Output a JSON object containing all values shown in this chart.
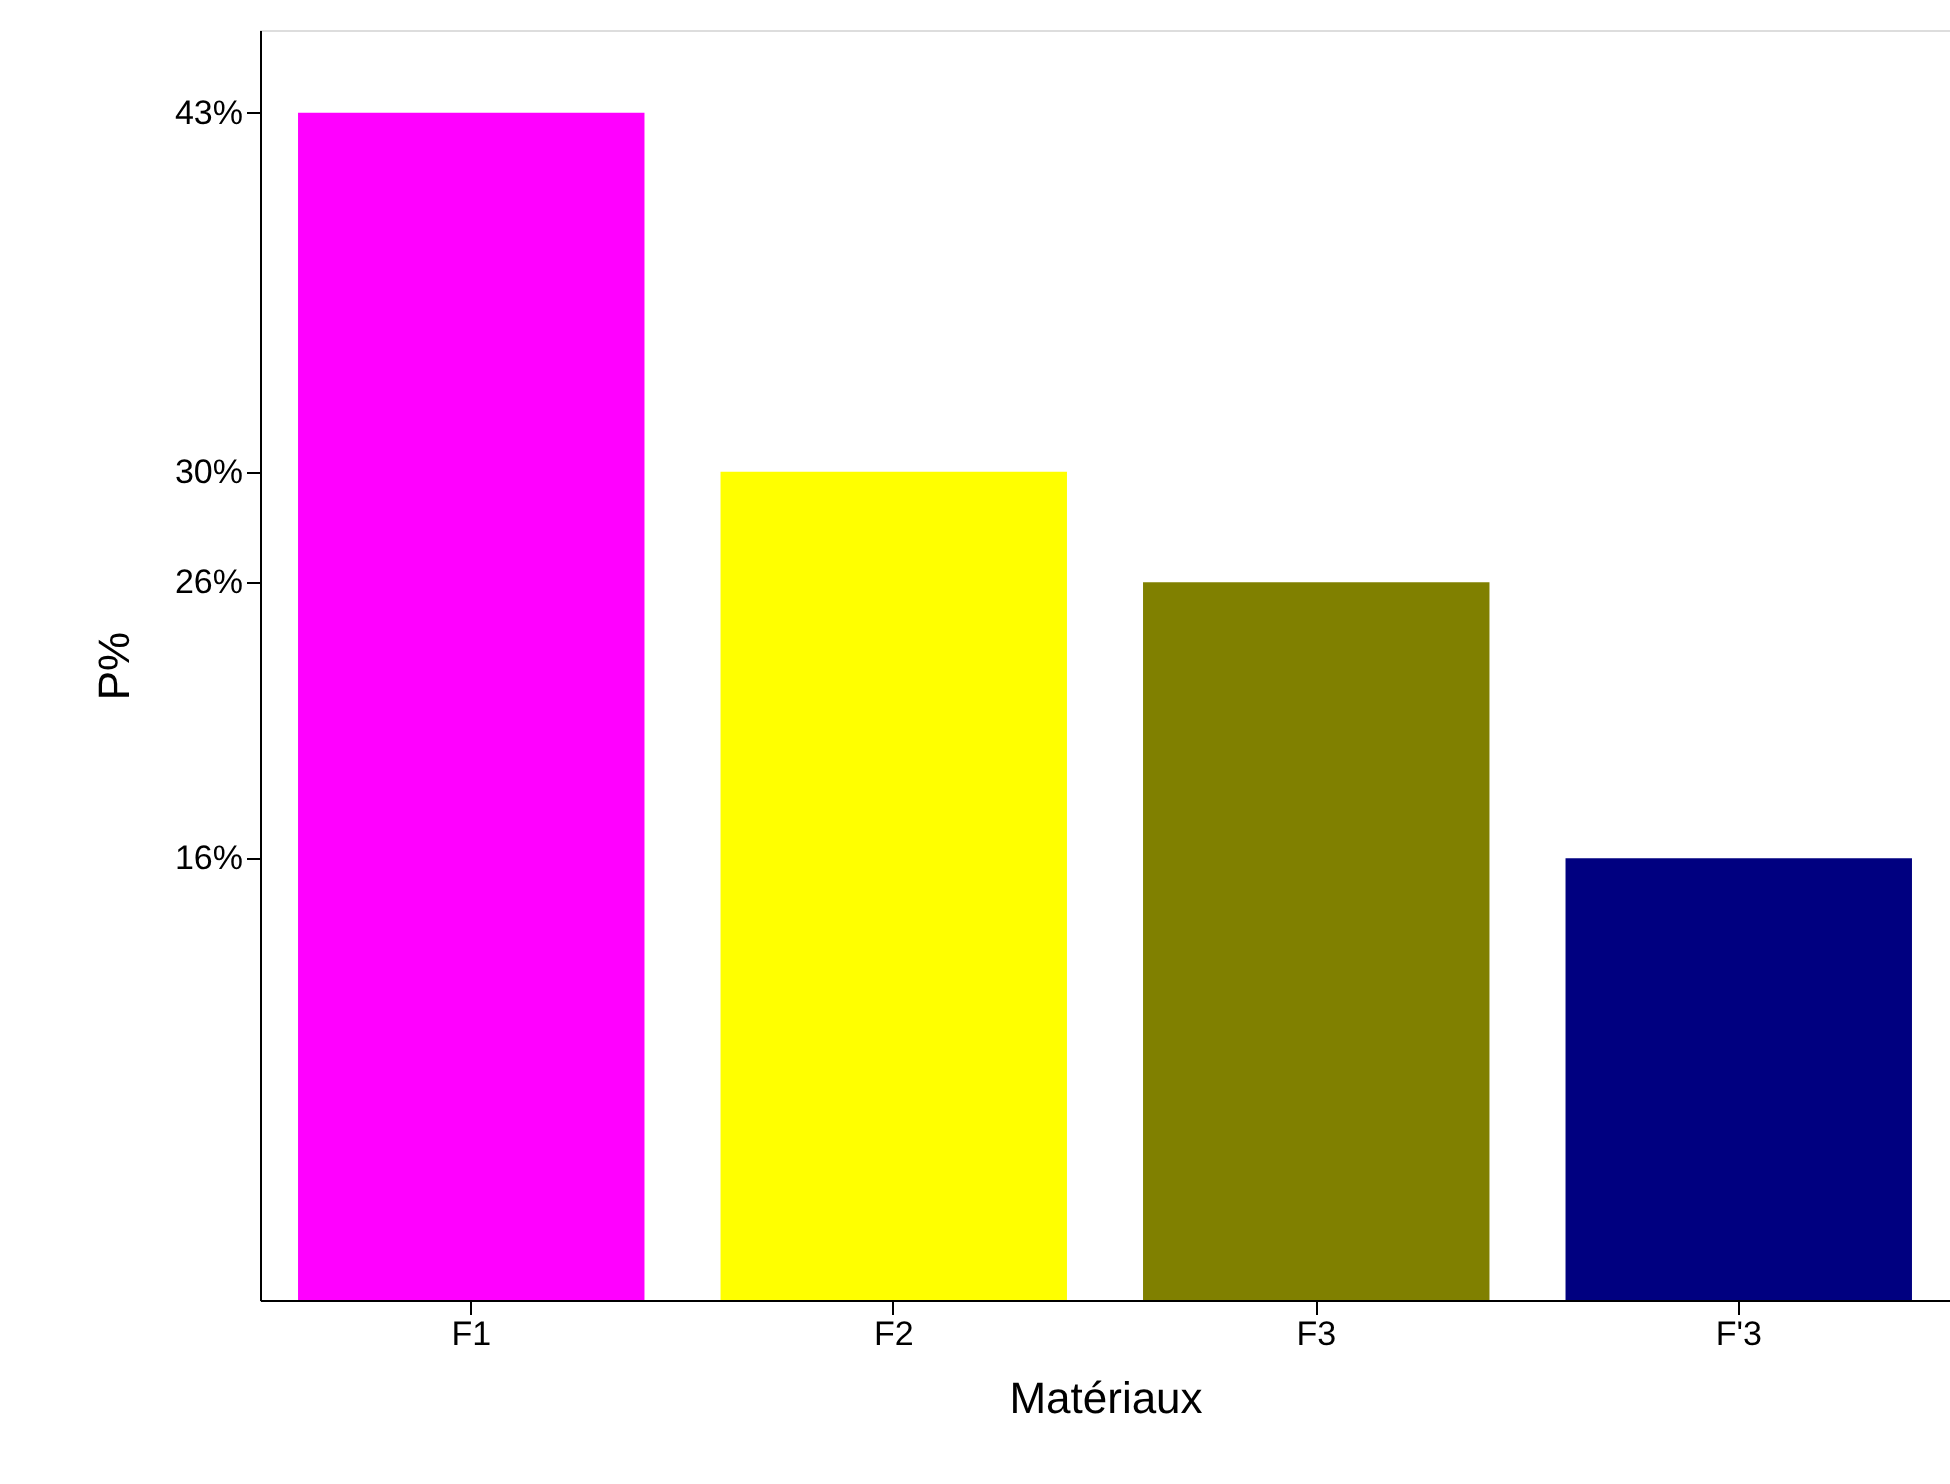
{
  "chart_data": {
    "type": "bar",
    "xlabel": "Matériaux",
    "ylabel": "P%",
    "categories": [
      "F1",
      "F2",
      "F3",
      "F'3"
    ],
    "values": [
      43,
      30,
      26,
      16
    ],
    "colors": [
      "#ff00ff",
      "#ffff00",
      "#808000",
      "#000080"
    ],
    "ylim": [
      0,
      46
    ],
    "yticks": [
      {
        "value": 16,
        "label": "16%"
      },
      {
        "value": 26,
        "label": "26%"
      },
      {
        "value": 30,
        "label": "30%"
      },
      {
        "value": 43,
        "label": "43%"
      }
    ],
    "grid": false
  }
}
